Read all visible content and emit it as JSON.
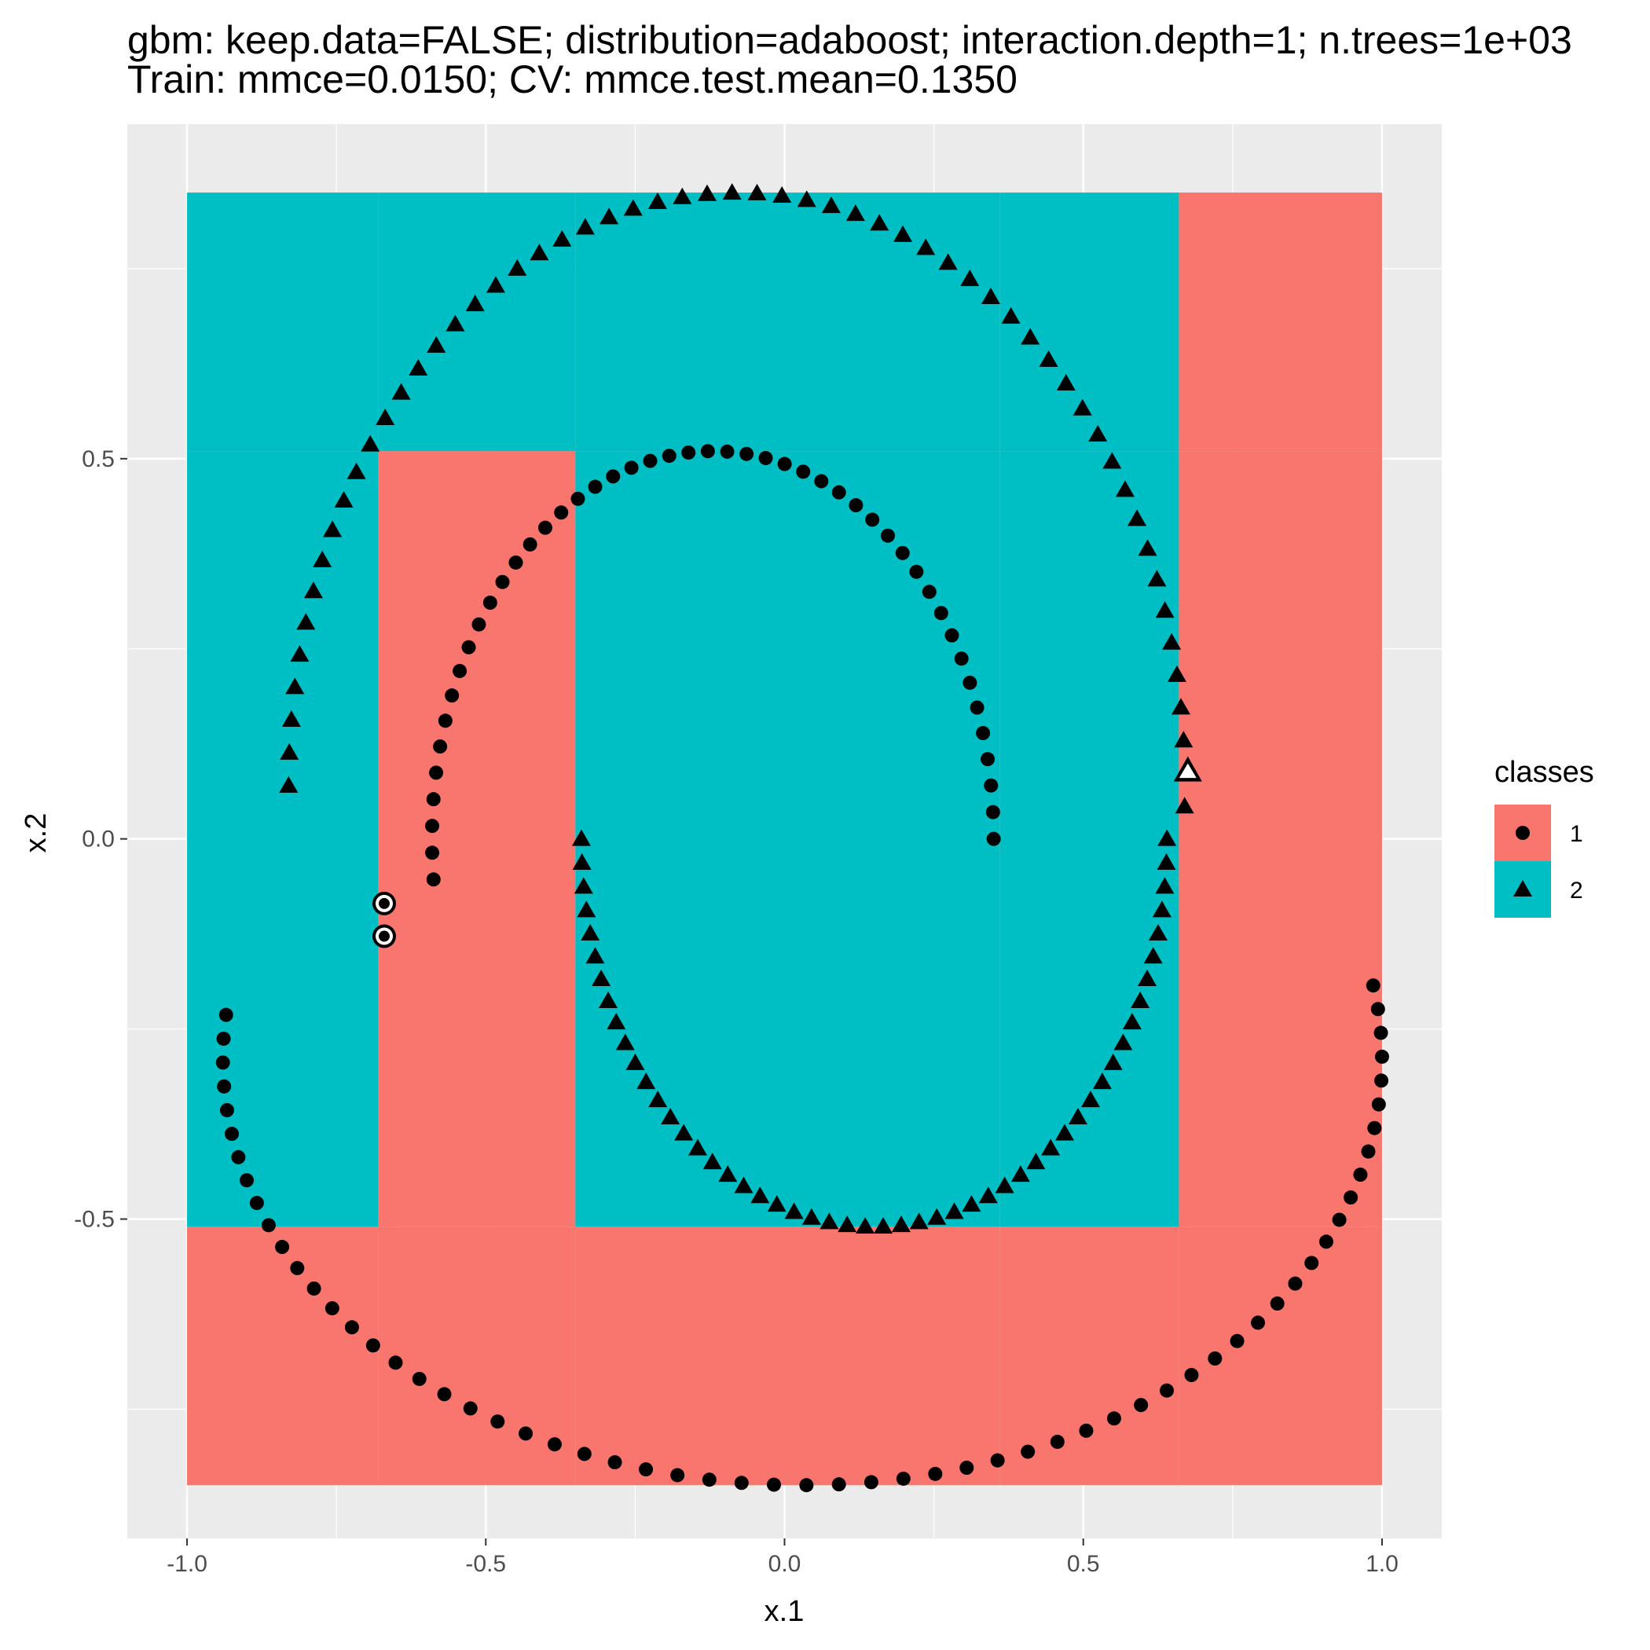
{
  "chart_data": {
    "type": "scatter",
    "title": "gbm: keep.data=FALSE; distribution=adaboost; interaction.depth=1; n.trees=1e+03",
    "subtitle": "Train: mmce=0.0150; CV: mmce.test.mean=0.1350",
    "xlabel": "x.1",
    "ylabel": "x.2",
    "xlim": [
      -1.1,
      1.1
    ],
    "ylim": [
      -0.92,
      0.94
    ],
    "x_ticks": [
      "-1.0",
      "-0.5",
      "0.0",
      "0.5",
      "1.0"
    ],
    "y_ticks": [
      "-0.5",
      "0.0",
      "0.5"
    ],
    "grid": true,
    "background": {
      "type": "prediction_regions",
      "x_range": [
        -1.0,
        1.0
      ],
      "y_range": [
        -0.85,
        0.85
      ],
      "x_breaks": [
        -1.0,
        -0.68,
        -0.35,
        0.36,
        0.66,
        1.0
      ],
      "y_breaks": [
        -0.85,
        -0.51,
        0.51,
        0.85
      ],
      "cells": [
        [
          "1",
          "1",
          "1",
          "1",
          "1"
        ],
        [
          "2",
          "1",
          "2",
          "2",
          "1"
        ],
        [
          "2",
          "2",
          "2",
          "2",
          "1"
        ]
      ],
      "cell_rows_order": "bottom-to-top"
    },
    "legend": {
      "title": "classes",
      "position": "right",
      "entries": [
        {
          "label": "1",
          "color": "#F8766D",
          "shape": "circle"
        },
        {
          "label": "2",
          "color": "#00BFC4",
          "shape": "triangle"
        }
      ]
    },
    "series": [
      {
        "name": "1",
        "shape": "circle",
        "groups": [
          {
            "type": "ellipse",
            "cx": 0.03,
            "cy": -0.29,
            "rx": 0.97,
            "ry": 0.56,
            "t_from": 174,
            "t_to": 370,
            "n": 62
          },
          {
            "type": "ellipse",
            "cx": -0.12,
            "cy": 0.0,
            "rx": 0.47,
            "ry": 0.51,
            "t_from": 0,
            "t_to": 186,
            "n": 48
          }
        ]
      },
      {
        "name": "2",
        "shape": "triangle",
        "groups": [
          {
            "type": "ellipse",
            "cx": -0.08,
            "cy": 0.07,
            "rx": 0.75,
            "ry": 0.78,
            "t_from": 180,
            "t_to": -2,
            "n": 58
          },
          {
            "type": "ellipse",
            "cx": 0.15,
            "cy": 0.0,
            "rx": 0.49,
            "ry": 0.51,
            "t_from": 0,
            "t_to": -180,
            "n": 52
          }
        ]
      }
    ],
    "highlighted_points": [
      {
        "class": "1",
        "x": -0.67,
        "y": -0.085
      },
      {
        "class": "1",
        "x": -0.67,
        "y": -0.128
      },
      {
        "class": "2",
        "x": 0.675,
        "y": 0.09
      }
    ]
  }
}
